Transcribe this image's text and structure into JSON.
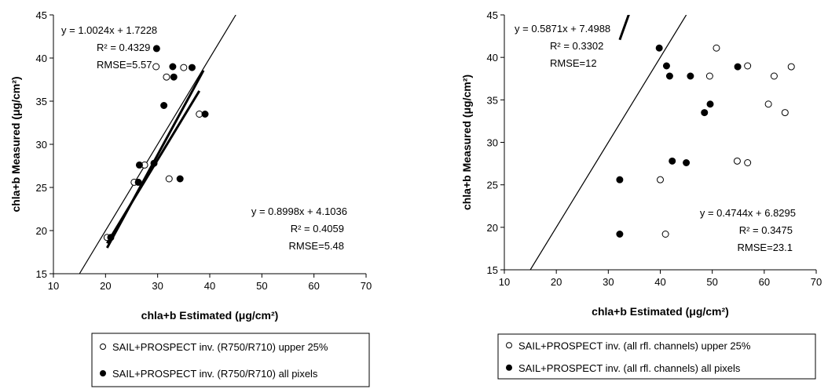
{
  "chart_data": [
    {
      "type": "scatter",
      "xlabel": "chla+b Estimated (μg/cm²)",
      "ylabel": "chla+b Measured (μg/cm²)",
      "xlim": [
        10,
        70
      ],
      "ylim": [
        15,
        45
      ],
      "x_ticks": [
        "10",
        "20",
        "30",
        "40",
        "50",
        "60",
        "70"
      ],
      "y_ticks": [
        "15",
        "20",
        "25",
        "30",
        "35",
        "40",
        "45"
      ],
      "grid": false,
      "series": [
        {
          "name": "SAIL+PROSPECT inv. (R750/R710) upper 25%",
          "marker": "open-circle",
          "points": [
            [
              20.3,
              19.2
            ],
            [
              25.5,
              25.6
            ],
            [
              27.5,
              27.6
            ],
            [
              32.2,
              26.0
            ],
            [
              29.7,
              39.0
            ],
            [
              31.7,
              37.8
            ],
            [
              35.0,
              38.9
            ],
            [
              38.0,
              33.5
            ]
          ],
          "fit": {
            "slope": 1.0024,
            "intercept": 1.7228,
            "x_range": [
              20.3,
              38.0
            ]
          },
          "annotation": [
            "y = 1.0024x + 1.7228",
            "R² = 0.4329",
            "RMSE=5.57"
          ]
        },
        {
          "name": "SAIL+PROSPECT inv. (R750/R710) all pixels",
          "marker": "filled-circle",
          "points": [
            [
              21.0,
              19.2
            ],
            [
              26.3,
              25.6
            ],
            [
              26.5,
              27.6
            ],
            [
              29.3,
              27.8
            ],
            [
              34.3,
              26.0
            ],
            [
              29.8,
              41.1
            ],
            [
              32.9,
              39.0
            ],
            [
              33.1,
              37.8
            ],
            [
              36.6,
              38.9
            ],
            [
              31.2,
              34.5
            ],
            [
              39.1,
              33.5
            ]
          ],
          "fit": {
            "slope": 0.8998,
            "intercept": 4.1036,
            "x_range": [
              20.3,
              38.8
            ]
          },
          "annotation": [
            "y = 0.8998x + 4.1036",
            "R² = 0.4059",
            "RMSE=5.48"
          ]
        }
      ],
      "one_to_one_line": true
    },
    {
      "type": "scatter",
      "xlabel": "chla+b Estimated (μg/cm²)",
      "ylabel": "chla+b Measured (μg/cm²)",
      "xlim": [
        10,
        70
      ],
      "ylim": [
        15,
        45
      ],
      "x_ticks": [
        "10",
        "20",
        "30",
        "40",
        "50",
        "60",
        "70"
      ],
      "y_ticks": [
        "15",
        "20",
        "25",
        "30",
        "35",
        "40",
        "45"
      ],
      "grid": false,
      "series": [
        {
          "name": "SAIL+PROSPECT inv. (all rfl. channels) upper 25%",
          "marker": "open-circle",
          "points": [
            [
              40.0,
              25.6
            ],
            [
              41.0,
              19.2
            ],
            [
              49.5,
              37.8
            ],
            [
              50.8,
              41.1
            ],
            [
              54.8,
              27.8
            ],
            [
              56.8,
              27.6
            ],
            [
              56.8,
              39.0
            ],
            [
              61.9,
              37.8
            ],
            [
              60.8,
              34.5
            ],
            [
              64.0,
              33.5
            ],
            [
              65.2,
              38.9
            ]
          ],
          "fit": {
            "slope": 0.4744,
            "intercept": 6.8295,
            "x_range": [
              40.0,
              65.3
            ]
          },
          "annotation": [
            "y = 0.4744x + 6.8295",
            "R² = 0.3475",
            "RMSE=23.1"
          ]
        },
        {
          "name": "SAIL+PROSPECT inv. (all rfl. channels) all pixels",
          "marker": "filled-circle",
          "points": [
            [
              32.2,
              25.6
            ],
            [
              32.2,
              19.2
            ],
            [
              39.8,
              41.1
            ],
            [
              41.2,
              39.0
            ],
            [
              41.8,
              37.8
            ],
            [
              45.8,
              37.8
            ],
            [
              42.3,
              27.8
            ],
            [
              45.0,
              27.6
            ],
            [
              48.5,
              33.5
            ],
            [
              49.6,
              34.5
            ],
            [
              54.9,
              38.9
            ]
          ],
          "fit": {
            "slope": 0.5871,
            "intercept": 7.4988,
            "x_range": [
              32.2,
              54.8
            ]
          },
          "annotation": [
            "y = 0.5871x + 7.4988",
            "R² = 0.3302",
            "RMSE=12"
          ]
        }
      ],
      "one_to_one_line": true
    }
  ]
}
